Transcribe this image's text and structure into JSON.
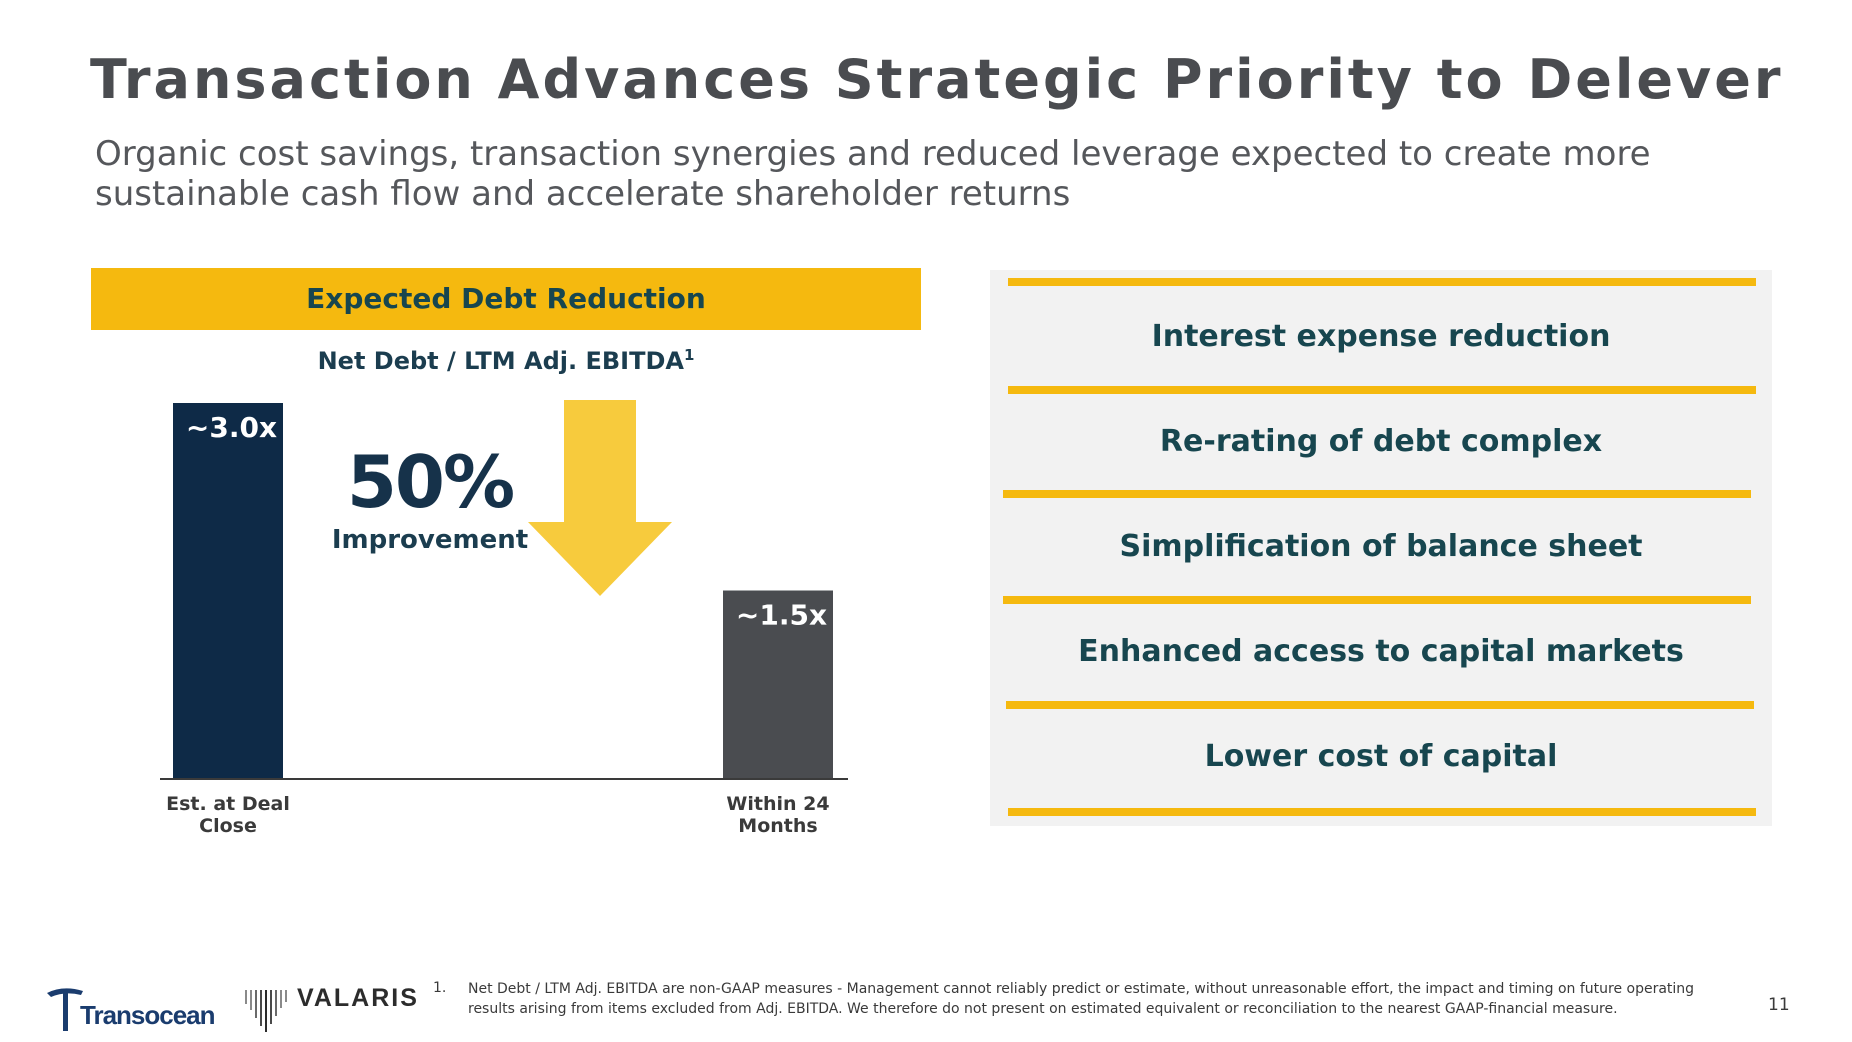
{
  "slide": {
    "title": "Transaction Advances Strategic Priority to Delever",
    "subtitle": "Organic cost savings, transaction synergies and reduced leverage expected to create more sustainable cash flow and accelerate shareholder returns",
    "page_number": "11"
  },
  "left_panel": {
    "banner": "Expected Debt Reduction",
    "improvement_value": "50%",
    "improvement_label": "Improvement"
  },
  "chart_data": {
    "type": "bar",
    "title": "Net Debt / LTM Adj. EBITDA",
    "title_footnote": "1",
    "categories": [
      "Est. at Deal Close",
      "Within 24 Months"
    ],
    "category_lines": [
      [
        "Est. at Deal",
        "Close"
      ],
      [
        "Within 24",
        "Months"
      ]
    ],
    "values": [
      3.0,
      1.5
    ],
    "data_labels": [
      "~3.0x",
      "~1.5x"
    ],
    "bar_colors": [
      "#0e2a47",
      "#4a4c50"
    ],
    "ylim": [
      0,
      3.0
    ],
    "xlabel": "",
    "ylabel": "",
    "grid": false,
    "legend": "none"
  },
  "benefits": [
    "Interest expense reduction",
    "Re-rating of debt complex",
    "Simplification of balance sheet",
    "Enhanced access to capital markets",
    "Lower cost of capital"
  ],
  "colors": {
    "accent_yellow": "#f5b90f",
    "arrow_yellow": "#f7cb3d",
    "navy": "#0e2a47",
    "gray_bar": "#4a4c50",
    "teal_text": "#17464f",
    "panel_bg": "#f2f2f2"
  },
  "logos": {
    "transocean": "Transocean",
    "valaris": "VALARIS"
  },
  "footnote": {
    "number": "1.",
    "text": "Net Debt / LTM Adj. EBITDA are non-GAAP measures - Management cannot reliably predict or estimate, without unreasonable effort, the impact and timing on future operating results arising from items excluded from Adj. EBITDA. We therefore do not present on estimated equivalent or reconciliation to the nearest GAAP-financial measure."
  }
}
